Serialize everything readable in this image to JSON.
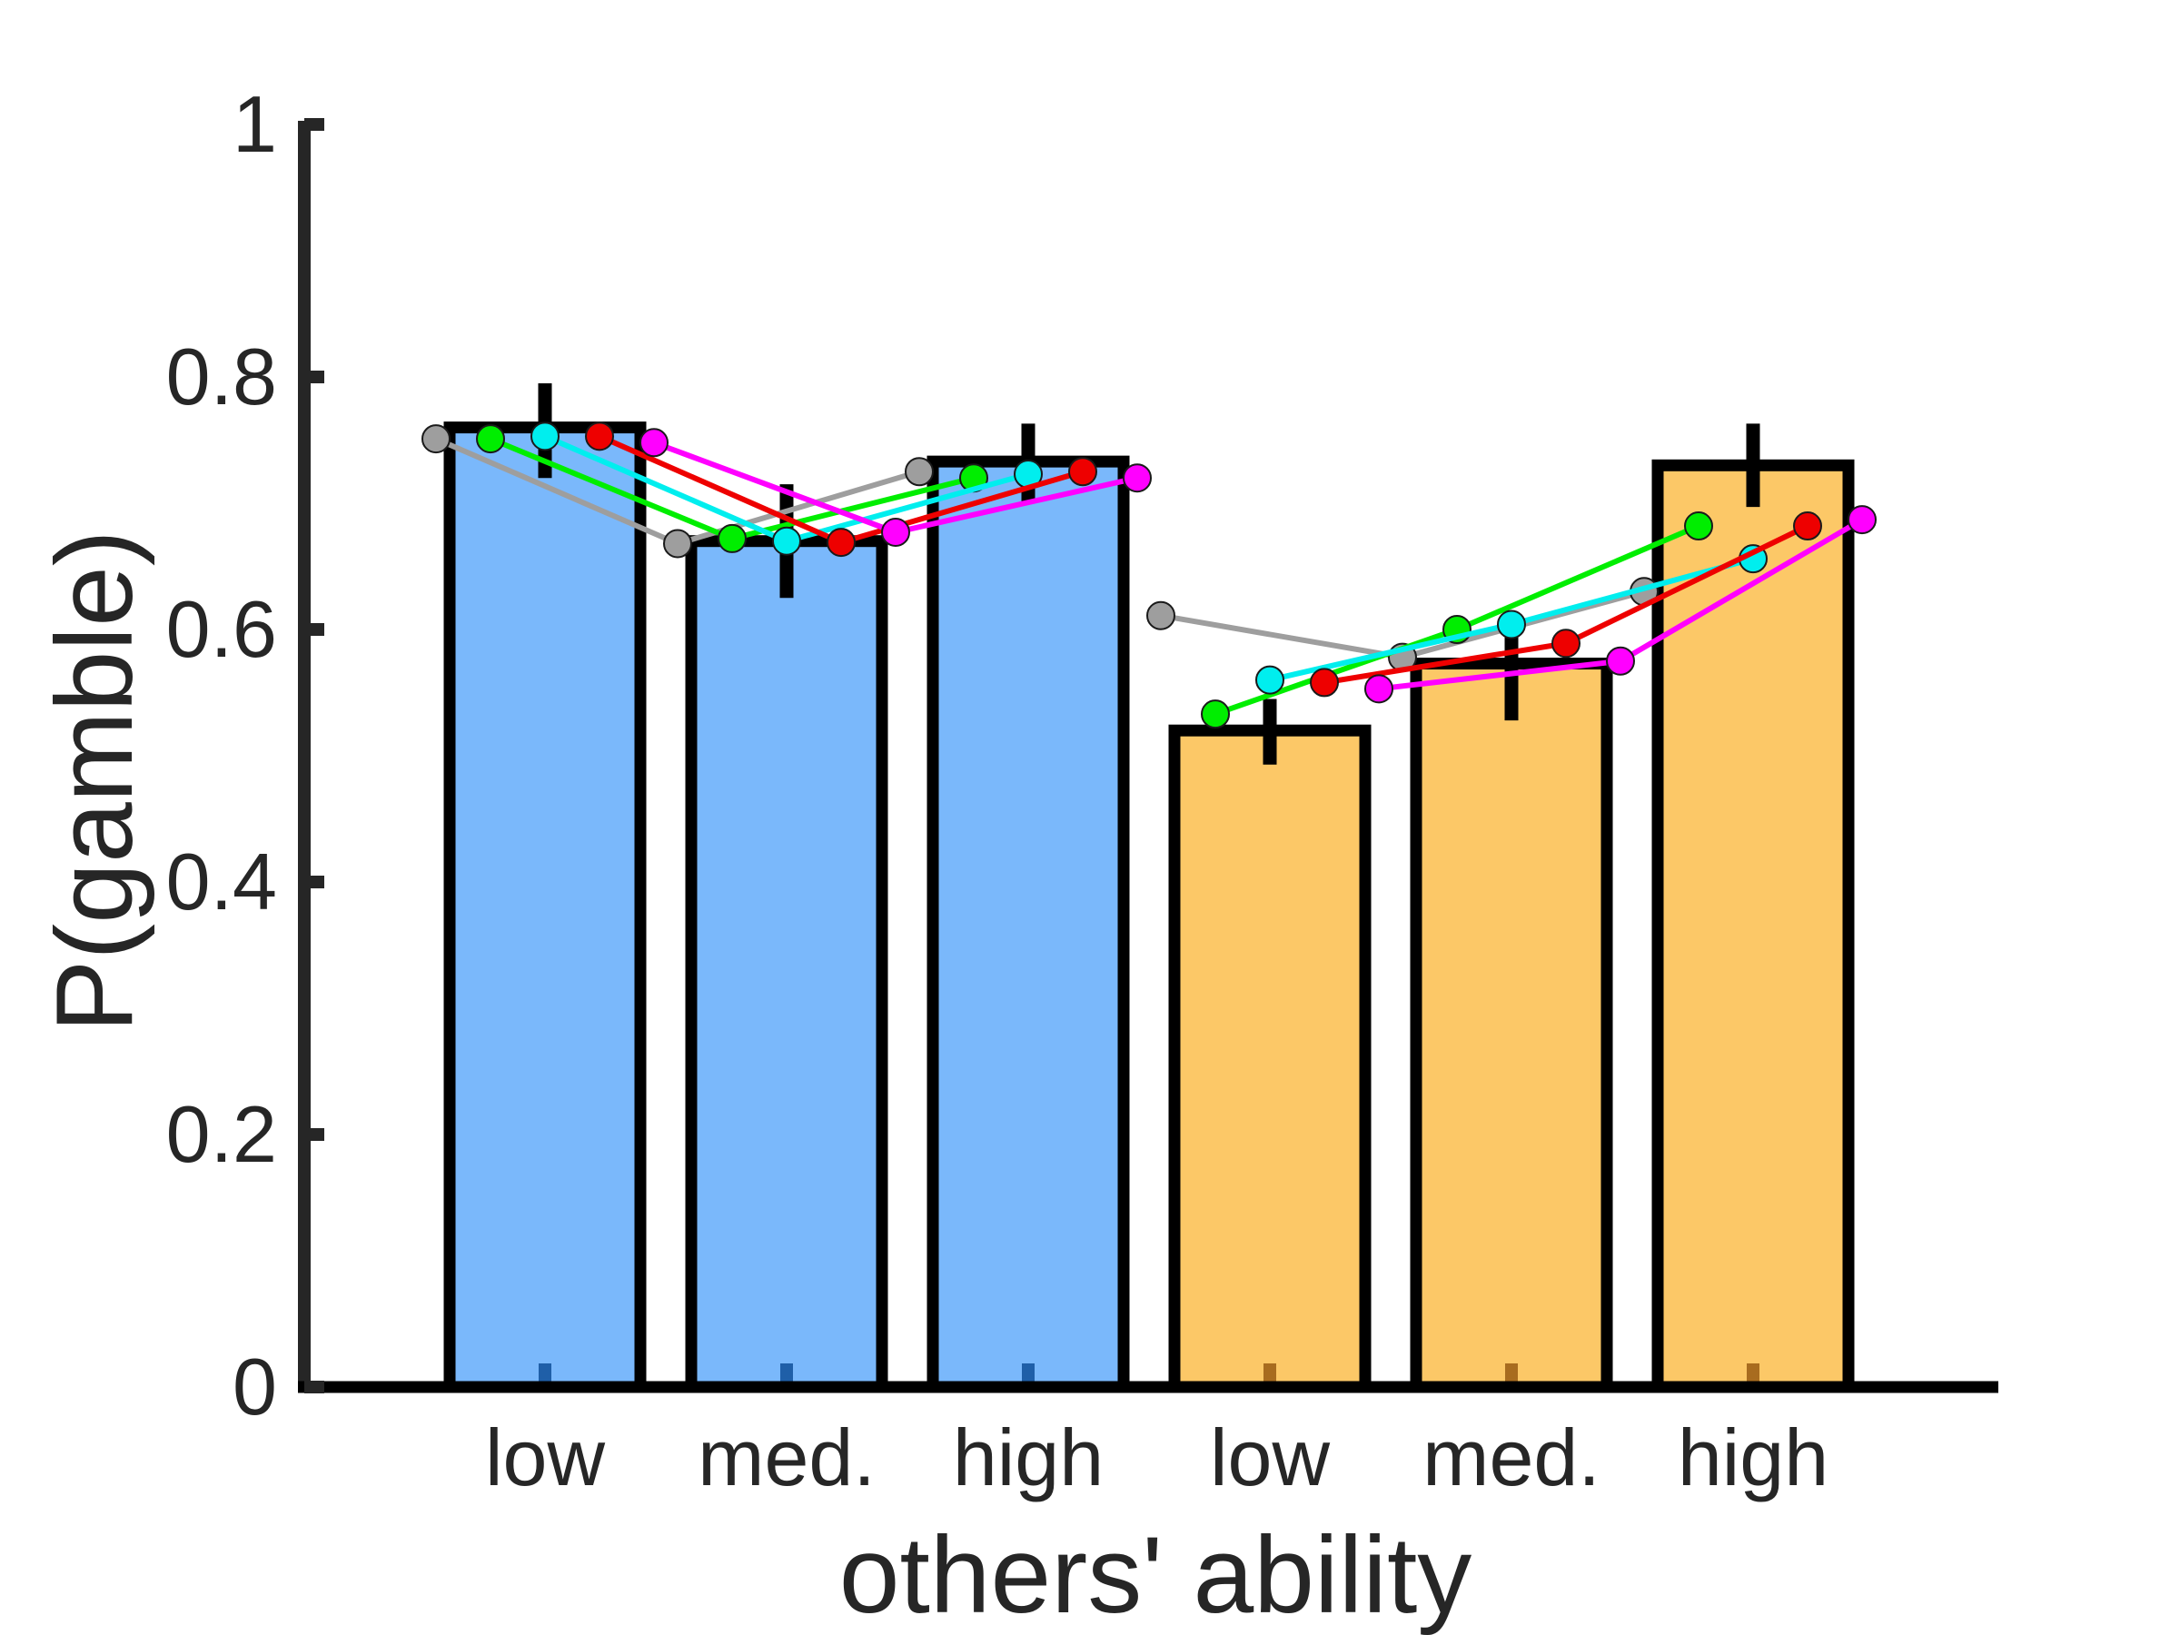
{
  "chart_data": {
    "type": "bar",
    "xlabel": "others' ability",
    "ylabel": "P(gamble)",
    "ylim": [
      0,
      1
    ],
    "yticks": [
      "0",
      "0.2",
      "0.4",
      "0.6",
      "0.8",
      "1"
    ],
    "categories": [
      "low",
      "med.",
      "high",
      "low",
      "med.",
      "high"
    ],
    "bars": [
      {
        "value": 0.76,
        "err_low": 0.72,
        "err_high": 0.795,
        "group": 1
      },
      {
        "value": 0.67,
        "err_low": 0.625,
        "err_high": 0.715,
        "group": 1
      },
      {
        "value": 0.733,
        "err_low": 0.7,
        "err_high": 0.763,
        "group": 1
      },
      {
        "value": 0.52,
        "err_low": 0.493,
        "err_high": 0.545,
        "group": 2
      },
      {
        "value": 0.573,
        "err_low": 0.528,
        "err_high": 0.61,
        "group": 2
      },
      {
        "value": 0.73,
        "err_low": 0.697,
        "err_high": 0.763,
        "group": 2
      }
    ],
    "group_colors": [
      "#7ab8fb",
      "#fcc867"
    ],
    "group_marker_colors": [
      "#1f5fa8",
      "#a86c1f"
    ],
    "series": [
      {
        "color": "#9e9e9e",
        "values": [
          0.751,
          0.668,
          0.725,
          0.611,
          0.578,
          0.63
        ]
      },
      {
        "color": "#00ee00",
        "values": [
          0.751,
          0.672,
          0.72,
          0.533,
          0.6,
          0.682
        ]
      },
      {
        "color": "#00eeee",
        "values": [
          0.753,
          0.67,
          0.723,
          0.56,
          0.604,
          0.656
        ]
      },
      {
        "color": "#ee0000",
        "values": [
          0.753,
          0.669,
          0.725,
          0.558,
          0.589,
          0.682
        ]
      },
      {
        "color": "#ff00ff",
        "values": [
          0.748,
          0.677,
          0.72,
          0.553,
          0.575,
          0.687
        ]
      }
    ]
  }
}
